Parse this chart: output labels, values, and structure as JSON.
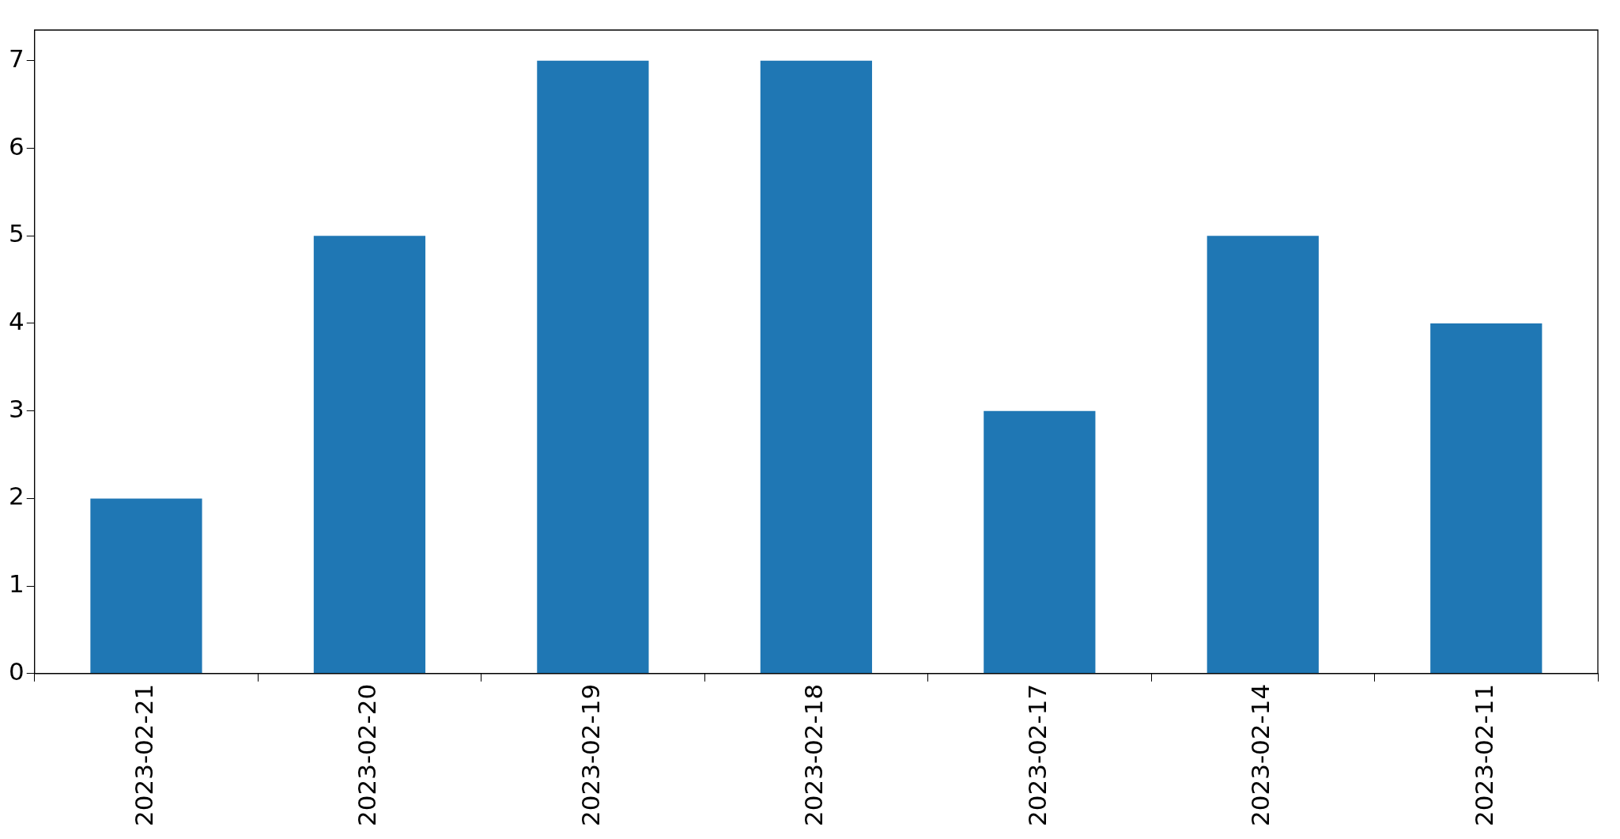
{
  "chart_data": {
    "type": "bar",
    "categories": [
      "2023-02-21",
      "2023-02-20",
      "2023-02-19",
      "2023-02-18",
      "2023-02-17",
      "2023-02-14",
      "2023-02-11"
    ],
    "values": [
      2,
      5,
      7,
      7,
      3,
      5,
      4
    ],
    "color": "#1f77b4",
    "ylim": [
      0,
      7.35
    ],
    "yticks": [
      0,
      1,
      2,
      3,
      4,
      5,
      6,
      7
    ],
    "grid": false,
    "legend": false
  }
}
